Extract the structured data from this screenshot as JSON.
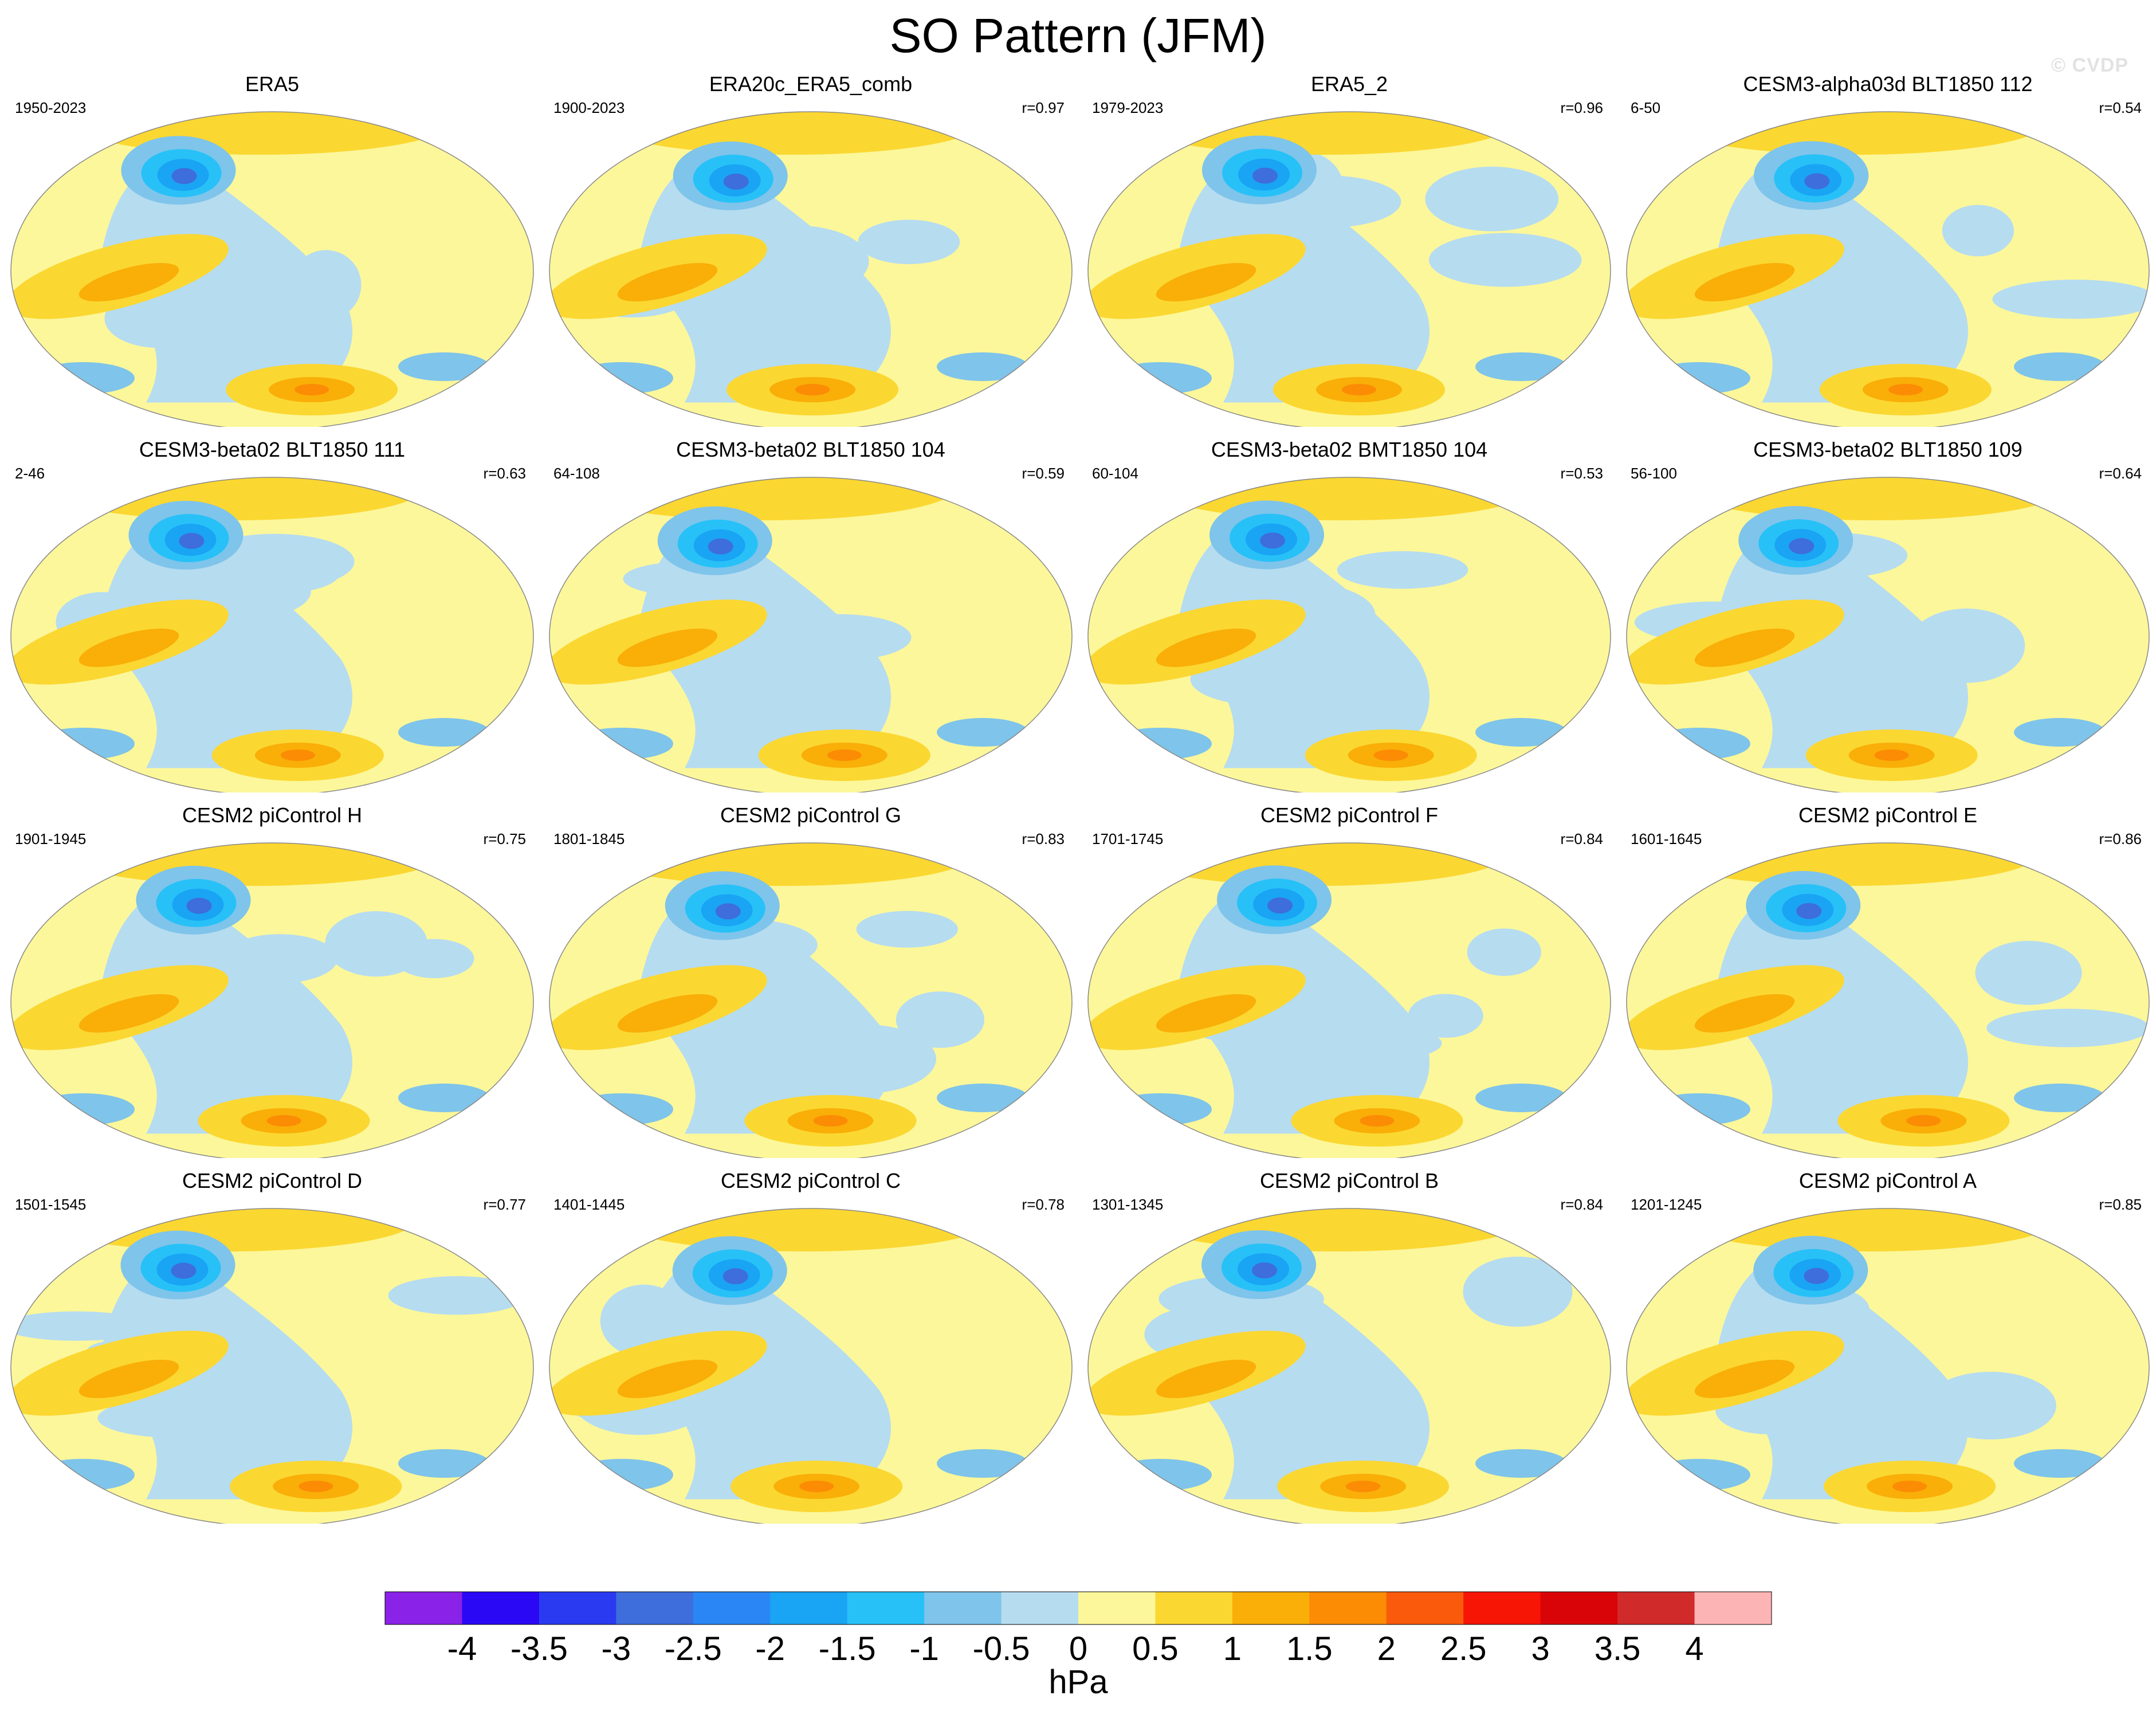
{
  "title": "SO Pattern (JFM)",
  "watermark": "© CVDP",
  "chart_data": {
    "type": "filled-contour map grid",
    "projection": "Robinson",
    "variable_units": "hPa",
    "panels": [
      {
        "title": "ERA5",
        "years": "1950-2023",
        "r": ""
      },
      {
        "title": "ERA20c_ERA5_comb",
        "years": "1900-2023",
        "r": "r=0.97"
      },
      {
        "title": "ERA5_2",
        "years": "1979-2023",
        "r": "r=0.96"
      },
      {
        "title": "CESM3-alpha03d BLT1850 112",
        "years": "6-50",
        "r": "r=0.54"
      },
      {
        "title": "CESM3-beta02 BLT1850 111",
        "years": "2-46",
        "r": "r=0.63"
      },
      {
        "title": "CESM3-beta02 BLT1850 104",
        "years": "64-108",
        "r": "r=0.59"
      },
      {
        "title": "CESM3-beta02 BMT1850 104",
        "years": "60-104",
        "r": "r=0.53"
      },
      {
        "title": "CESM3-beta02 BLT1850 109",
        "years": "56-100",
        "r": "r=0.64"
      },
      {
        "title": "CESM2 piControl H",
        "years": "1901-1945",
        "r": "r=0.75"
      },
      {
        "title": "CESM2 piControl G",
        "years": "1801-1845",
        "r": "r=0.83"
      },
      {
        "title": "CESM2 piControl F",
        "years": "1701-1745",
        "r": "r=0.84"
      },
      {
        "title": "CESM2 piControl E",
        "years": "1601-1645",
        "r": "r=0.86"
      },
      {
        "title": "CESM2 piControl D",
        "years": "1501-1545",
        "r": "r=0.77"
      },
      {
        "title": "CESM2 piControl C",
        "years": "1401-1445",
        "r": "r=0.78"
      },
      {
        "title": "CESM2 piControl B",
        "years": "1301-1345",
        "r": "r=0.84"
      },
      {
        "title": "CESM2 piControl A",
        "years": "1201-1245",
        "r": "r=0.85"
      }
    ],
    "colorbar": {
      "label": "hPa",
      "tick_labels": [
        "-4",
        "-3.5",
        "-3",
        "-2.5",
        "-2",
        "-1.5",
        "-1",
        "-0.5",
        "0",
        "0.5",
        "1",
        "1.5",
        "2",
        "2.5",
        "3",
        "3.5",
        "4"
      ],
      "levels": [
        -4,
        -3.5,
        -3,
        -2.5,
        -2,
        -1.5,
        -1,
        -0.5,
        0,
        0.5,
        1,
        1.5,
        2,
        2.5,
        3,
        3.5,
        4
      ],
      "colors": [
        "#8a22e8",
        "#2a08f5",
        "#2a3af0",
        "#3e6ddc",
        "#2a86f5",
        "#1aa4f4",
        "#27c1f8",
        "#7fc4ea",
        "#b6dcf0",
        "#fcf79a",
        "#fbd731",
        "#f9ae08",
        "#fb8c04",
        "#fa5a0c",
        "#f71506",
        "#d90408",
        "#d12a2a",
        "#fcb4b4"
      ]
    }
  }
}
